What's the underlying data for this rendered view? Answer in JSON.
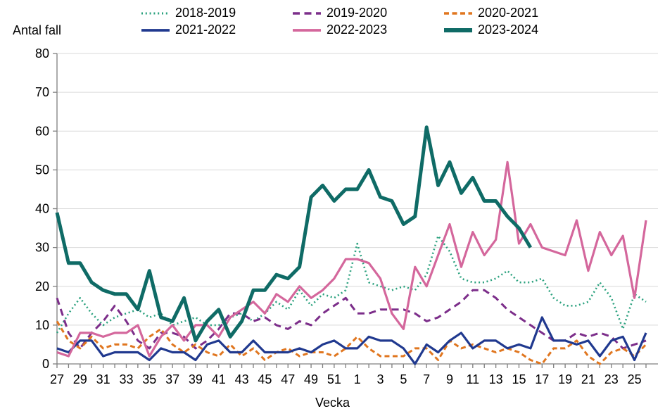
{
  "y_axis_label": "Antal fall",
  "x_axis_label": "Vecka",
  "chart_data": {
    "type": "line",
    "x_categories": [
      "27",
      "28",
      "29",
      "30",
      "31",
      "32",
      "33",
      "34",
      "35",
      "36",
      "37",
      "38",
      "39",
      "40",
      "41",
      "42",
      "43",
      "44",
      "45",
      "46",
      "47",
      "48",
      "49",
      "50",
      "51",
      "52",
      "1",
      "2",
      "3",
      "4",
      "5",
      "6",
      "7",
      "8",
      "9",
      "10",
      "11",
      "12",
      "13",
      "14",
      "15",
      "16",
      "17",
      "18",
      "19",
      "20",
      "21",
      "22",
      "23",
      "24",
      "25",
      "26"
    ],
    "x_label_every": 2,
    "ylim": [
      0,
      80
    ],
    "ytick_step": 10,
    "grid": "horizontal",
    "legend_position": "top",
    "colors": {
      "grid": "#d9d9d9",
      "axis": "#7f7f7f",
      "text": "#000000"
    },
    "series": [
      {
        "name": "2018-2019",
        "color": "#2aa17e",
        "style": "dotted",
        "values": [
          8,
          13,
          17,
          13,
          10,
          12,
          13,
          14,
          12,
          13,
          10,
          11,
          12,
          10,
          10,
          12,
          13,
          11,
          13,
          16,
          14,
          19,
          15,
          18,
          17,
          19,
          31,
          21,
          20,
          19,
          20,
          19,
          23,
          33,
          29,
          22,
          21,
          21,
          22,
          24,
          21,
          21,
          22,
          17,
          15,
          15,
          16,
          21,
          17,
          9,
          18,
          16
        ]
      },
      {
        "name": "2019-2020",
        "color": "#7c2e8a",
        "style": "dashed",
        "values": [
          17,
          8,
          4,
          8,
          11,
          15,
          11,
          6,
          4,
          8,
          8,
          7,
          4,
          6,
          9,
          13,
          13,
          11,
          12,
          10,
          9,
          11,
          10,
          13,
          15,
          17,
          13,
          13,
          14,
          14,
          14,
          13,
          11,
          12,
          14,
          16,
          19,
          19,
          17,
          14,
          12,
          10,
          8,
          6,
          6,
          8,
          7,
          8,
          7,
          4,
          5,
          6
        ]
      },
      {
        "name": "2020-2021",
        "color": "#e0761f",
        "style": "dashed",
        "values": [
          11,
          6,
          4,
          7,
          4,
          5,
          5,
          4,
          7,
          9,
          5,
          3,
          5,
          3,
          2,
          5,
          2,
          4,
          1,
          3,
          4,
          2,
          3,
          3,
          2,
          4,
          7,
          4,
          2,
          2,
          2,
          4,
          4,
          1,
          6,
          4,
          5,
          4,
          3,
          4,
          3,
          1,
          0,
          4,
          4,
          6,
          2,
          0,
          3,
          4,
          2,
          5
        ]
      },
      {
        "name": "2021-2022",
        "color": "#20398f",
        "style": "solid",
        "values": [
          4,
          3,
          6,
          6,
          2,
          3,
          3,
          3,
          1,
          4,
          3,
          3,
          1,
          5,
          6,
          3,
          3,
          6,
          3,
          3,
          3,
          4,
          3,
          5,
          6,
          4,
          4,
          7,
          6,
          6,
          4,
          0,
          5,
          3,
          6,
          8,
          4,
          6,
          6,
          4,
          5,
          4,
          12,
          6,
          6,
          5,
          6,
          2,
          6,
          7,
          1,
          8
        ]
      },
      {
        "name": "2022-2023",
        "color": "#d4679c",
        "style": "solid",
        "values": [
          3,
          2,
          8,
          8,
          7,
          8,
          8,
          10,
          2,
          7,
          10,
          6,
          10,
          10,
          7,
          12,
          14,
          16,
          13,
          18,
          16,
          20,
          17,
          19,
          22,
          27,
          27,
          26,
          22,
          13,
          9,
          25,
          20,
          28,
          36,
          25,
          34,
          28,
          32,
          52,
          31,
          36,
          30,
          29,
          28,
          37,
          24,
          34,
          28,
          33,
          17,
          37
        ]
      },
      {
        "name": "2023-2024",
        "color": "#0f6b66",
        "style": "solid-thick",
        "values": [
          39,
          26,
          26,
          21,
          19,
          18,
          18,
          14,
          24,
          12,
          11,
          17,
          6,
          11,
          14,
          7,
          11,
          19,
          19,
          23,
          22,
          25,
          43,
          46,
          42,
          45,
          45,
          50,
          43,
          42,
          36,
          38,
          61,
          46,
          52,
          44,
          48,
          42,
          42,
          38,
          35,
          30,
          null,
          null,
          null,
          null,
          null,
          null,
          null,
          null,
          null,
          null
        ]
      }
    ]
  }
}
